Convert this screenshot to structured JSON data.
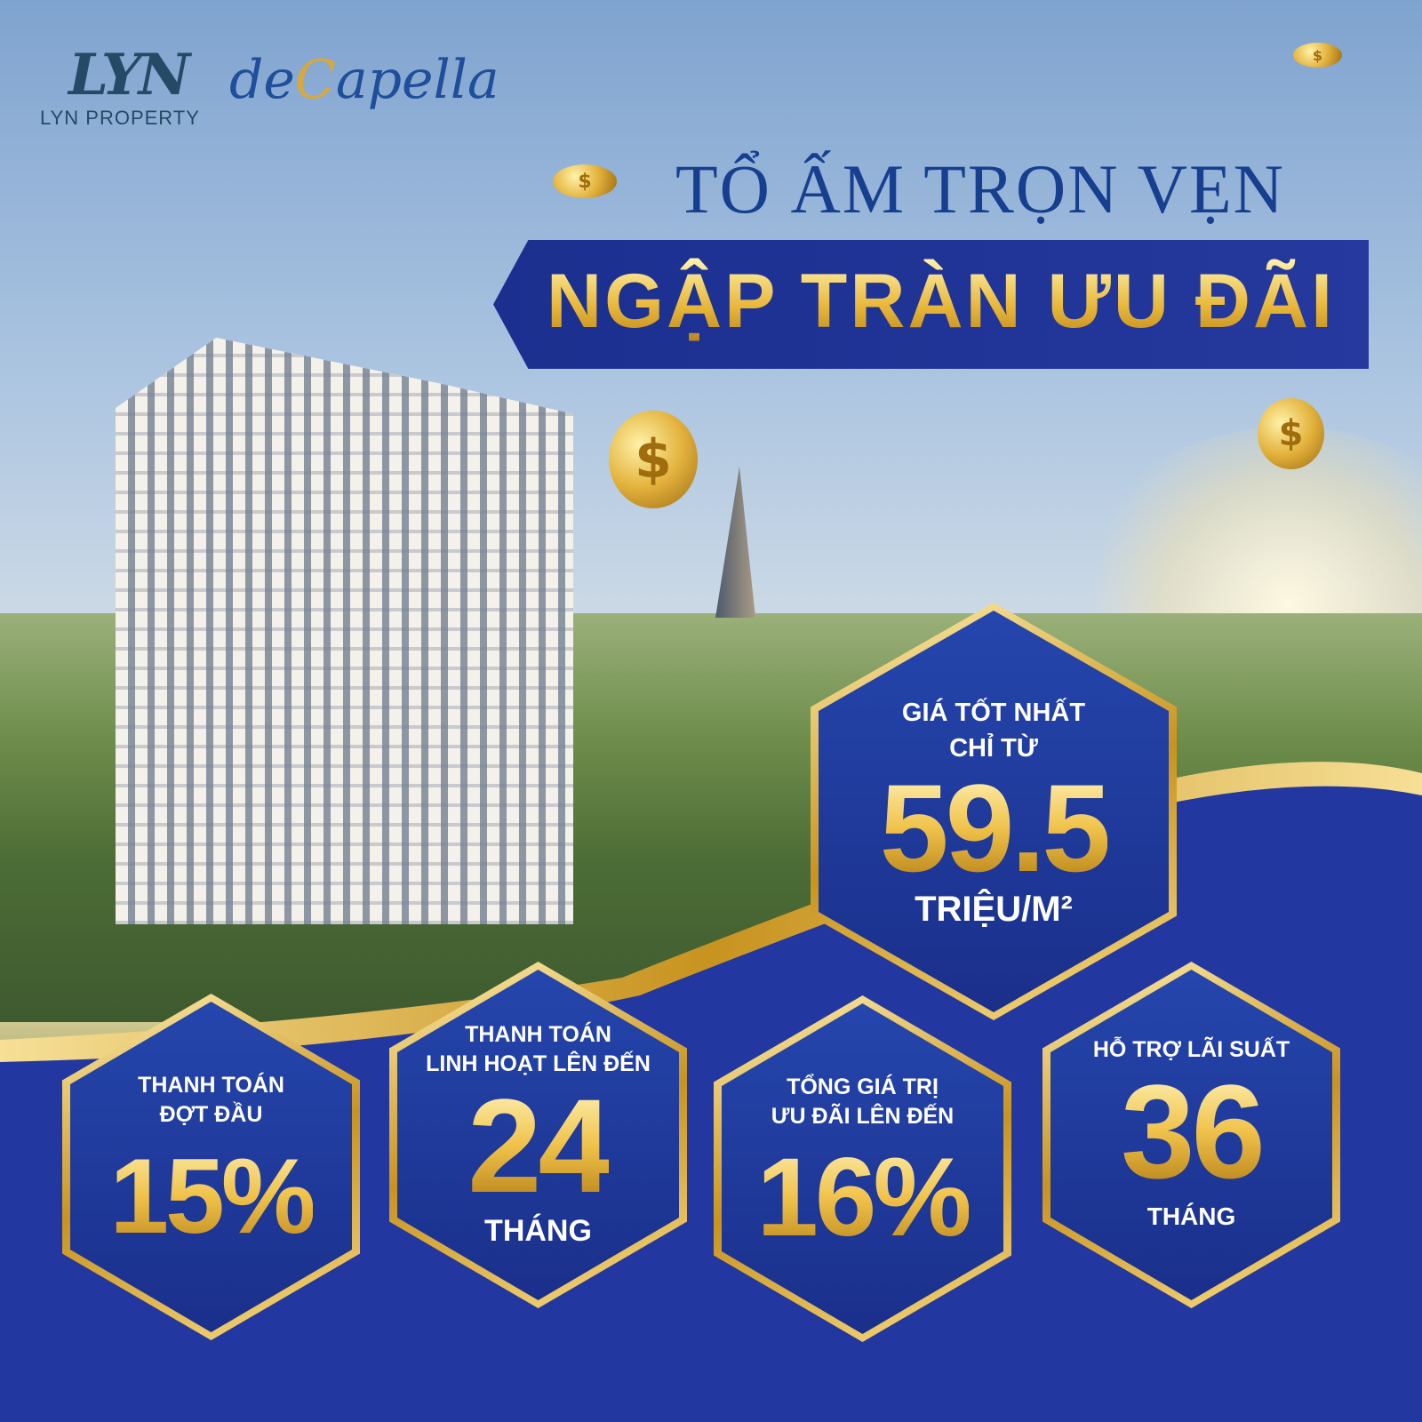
{
  "logo": {
    "mark": "LYN",
    "company": "LYN PROPERTY"
  },
  "brand": {
    "prefix": "de",
    "initial": "C",
    "rest": "apella"
  },
  "headline": {
    "line1": "TỔ ẤM TRỌN VẸN",
    "line2": "NGẬP TRÀN ƯU ĐÃI"
  },
  "colors": {
    "navy": "#1b2f8f",
    "gold": "#e8b83a",
    "hex_blue": "#2546ad"
  },
  "offers": [
    {
      "label": [
        "GIÁ TỐT NHẤT",
        "CHỈ TỪ"
      ],
      "value": "59.5",
      "unit": "TRIỆU/M²"
    },
    {
      "label": [
        "THANH TOÁN",
        "ĐỢT ĐẦU"
      ],
      "value": "15%",
      "unit": ""
    },
    {
      "label": [
        "THANH TOÁN",
        "LINH HOẠT LÊN ĐẾN"
      ],
      "value": "24",
      "unit": "THÁNG"
    },
    {
      "label": [
        "TỔNG GIÁ TRỊ",
        "ƯU ĐÃI LÊN ĐẾN"
      ],
      "value": "16%",
      "unit": ""
    },
    {
      "label": [
        "HỖ TRỢ LÃI SUẤT"
      ],
      "value": "36",
      "unit": "THÁNG"
    }
  ],
  "coin_symbol": "$"
}
